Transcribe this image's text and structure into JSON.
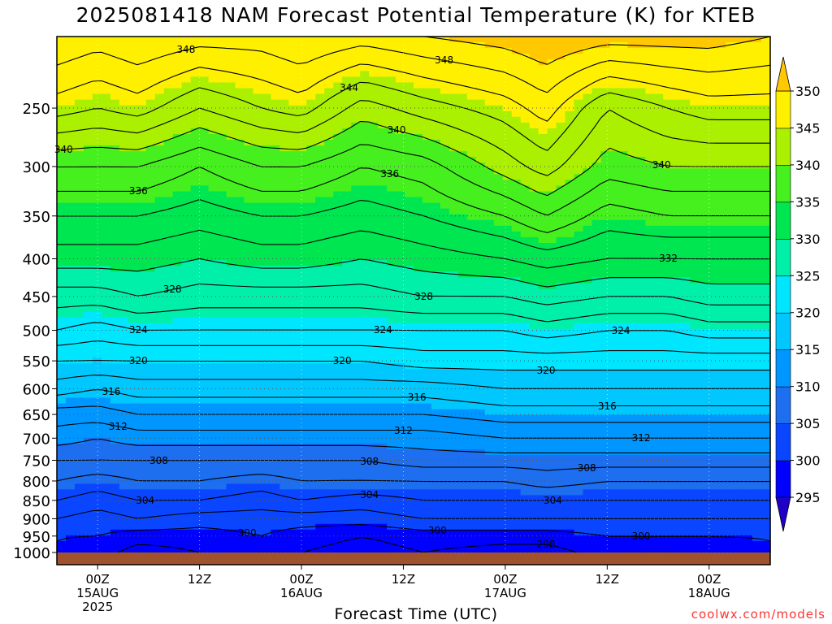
{
  "header": {
    "title": "2025081418 NAM Forecast Potential Temperature (K) for KTEB"
  },
  "footer": {
    "xlabel": "Forecast Time (UTC)",
    "credit": "coolwx.com/models"
  },
  "colors": {
    "ground": "#a0522d",
    "contour": "#000000",
    "grid": "#555555"
  },
  "chart_data": {
    "type": "filled-contour",
    "title": "2025081418 NAM Forecast Potential Temperature (K) for KTEB",
    "xlabel": "Forecast Time (UTC)",
    "ylabel": "",
    "x_range_hours": [
      -6,
      99
    ],
    "y_axis": "pressure (hPa), inverted",
    "y_range": [
      200,
      1000
    ],
    "x_ticks": [
      {
        "hour": 0,
        "lines": [
          "00Z",
          "15AUG",
          "2025"
        ]
      },
      {
        "hour": 15,
        "lines": [
          "12Z"
        ]
      },
      {
        "hour": 30,
        "lines": [
          "00Z",
          "16AUG"
        ]
      },
      {
        "hour": 45,
        "lines": [
          "12Z"
        ]
      },
      {
        "hour": 60,
        "lines": [
          "00Z",
          "17AUG"
        ]
      },
      {
        "hour": 75,
        "lines": [
          "12Z"
        ]
      },
      {
        "hour": 90,
        "lines": [
          "00Z",
          "18AUG"
        ]
      }
    ],
    "y_ticks": [
      250,
      300,
      350,
      400,
      450,
      500,
      550,
      600,
      650,
      700,
      750,
      800,
      850,
      900,
      950,
      1000
    ],
    "colorbar": {
      "labels": [
        295,
        300,
        305,
        310,
        315,
        320,
        325,
        330,
        335,
        340,
        345,
        350
      ],
      "bands": [
        {
          "min": 290,
          "max": 295,
          "color": "#1e00c8"
        },
        {
          "min": 295,
          "max": 300,
          "color": "#0000ff"
        },
        {
          "min": 300,
          "max": 305,
          "color": "#0a46ff"
        },
        {
          "min": 305,
          "max": 310,
          "color": "#1e6ef0"
        },
        {
          "min": 310,
          "max": 315,
          "color": "#0096ff"
        },
        {
          "min": 315,
          "max": 320,
          "color": "#00c8ff"
        },
        {
          "min": 320,
          "max": 325,
          "color": "#00e6ff"
        },
        {
          "min": 325,
          "max": 330,
          "color": "#00f0aa"
        },
        {
          "min": 330,
          "max": 335,
          "color": "#00e650"
        },
        {
          "min": 335,
          "max": 340,
          "color": "#46f01e"
        },
        {
          "min": 340,
          "max": 345,
          "color": "#aaf000"
        },
        {
          "min": 345,
          "max": 350,
          "color": "#fff000"
        },
        {
          "min": 350,
          "max": 355,
          "color": "#ffc800"
        }
      ]
    },
    "profile_pressures": [
      200,
      250,
      300,
      350,
      400,
      450,
      500,
      550,
      600,
      650,
      700,
      750,
      800,
      850,
      900,
      950,
      1000
    ],
    "profiles": [
      {
        "hour": -6,
        "theta": [
          350,
          345,
          338,
          334,
          331,
          327,
          324,
          320,
          317,
          313,
          311,
          308,
          306,
          304,
          302,
          300,
          300
        ]
      },
      {
        "hour": 0,
        "theta": [
          349,
          344,
          338,
          334,
          331,
          327,
          323,
          320,
          316,
          313,
          310,
          308,
          305,
          303,
          301,
          300,
          299
        ]
      },
      {
        "hour": 6,
        "theta": [
          350,
          345,
          338,
          334,
          331,
          328,
          324,
          320,
          317,
          314,
          311,
          308,
          306,
          304,
          302,
          299,
          297
        ]
      },
      {
        "hour": 15,
        "theta": [
          349,
          342,
          336,
          333,
          330,
          327,
          324,
          320,
          317,
          314,
          311,
          308,
          306,
          304,
          301,
          299,
          298
        ]
      },
      {
        "hour": 24,
        "theta": [
          349,
          344,
          338,
          334,
          331,
          327,
          324,
          320,
          317,
          314,
          311,
          308,
          305,
          303,
          301,
          300,
          300
        ]
      },
      {
        "hour": 30,
        "theta": [
          350,
          345,
          338,
          334,
          331,
          327,
          324,
          320,
          317,
          314,
          311,
          308,
          306,
          304,
          301,
          299,
          298
        ]
      },
      {
        "hour": 39,
        "theta": [
          349,
          341,
          336,
          333,
          330,
          327,
          324,
          320,
          317,
          314,
          311,
          308,
          306,
          303,
          301,
          298,
          297
        ]
      },
      {
        "hour": 48,
        "theta": [
          350,
          343,
          337,
          334,
          331,
          328,
          324,
          321,
          317,
          314,
          311,
          309,
          306,
          304,
          302,
          299,
          298
        ]
      },
      {
        "hour": 60,
        "theta": [
          351,
          345,
          341,
          336,
          332,
          328,
          324,
          321,
          318,
          315,
          312,
          309,
          306,
          304,
          302,
          299,
          297
        ]
      },
      {
        "hour": 66,
        "theta": [
          352,
          347,
          343,
          338,
          333,
          329,
          325,
          321,
          318,
          315,
          312,
          309,
          307,
          304,
          302,
          299,
          297
        ]
      },
      {
        "hour": 75,
        "theta": [
          351,
          342,
          339,
          335,
          332,
          328,
          324,
          321,
          318,
          315,
          312,
          309,
          306,
          304,
          302,
          300,
          299
        ]
      },
      {
        "hour": 84,
        "theta": [
          351,
          344,
          340,
          336,
          332,
          328,
          324,
          321,
          318,
          315,
          312,
          309,
          306,
          304,
          302,
          300,
          299
        ]
      },
      {
        "hour": 90,
        "theta": [
          351,
          345,
          340,
          336,
          332,
          329,
          325,
          321,
          318,
          315,
          312,
          309,
          306,
          304,
          302,
          300,
          299
        ]
      },
      {
        "hour": 99,
        "theta": [
          350,
          345,
          340,
          336,
          332,
          329,
          325,
          321,
          318,
          315,
          312,
          309,
          306,
          304,
          302,
          300,
          300
        ]
      }
    ],
    "contour_interval": 2,
    "contour_labels": [
      {
        "value": 348,
        "hour": 13
      },
      {
        "value": 348,
        "hour": 51
      },
      {
        "value": 344,
        "hour": 37
      },
      {
        "value": 340,
        "hour": 44
      },
      {
        "value": 340,
        "hour": 83
      },
      {
        "value": 340,
        "hour": -5
      },
      {
        "value": 336,
        "hour": 6
      },
      {
        "value": 336,
        "hour": 43
      },
      {
        "value": 332,
        "hour": 84
      },
      {
        "value": 328,
        "hour": 11
      },
      {
        "value": 328,
        "hour": 48
      },
      {
        "value": 324,
        "hour": 6
      },
      {
        "value": 324,
        "hour": 42
      },
      {
        "value": 324,
        "hour": 77
      },
      {
        "value": 320,
        "hour": 6
      },
      {
        "value": 320,
        "hour": 36
      },
      {
        "value": 320,
        "hour": 66
      },
      {
        "value": 316,
        "hour": 2
      },
      {
        "value": 316,
        "hour": 47
      },
      {
        "value": 316,
        "hour": 75
      },
      {
        "value": 312,
        "hour": 3
      },
      {
        "value": 312,
        "hour": 45
      },
      {
        "value": 312,
        "hour": 80
      },
      {
        "value": 308,
        "hour": 9
      },
      {
        "value": 308,
        "hour": 40
      },
      {
        "value": 308,
        "hour": 72
      },
      {
        "value": 304,
        "hour": 7
      },
      {
        "value": 304,
        "hour": 40
      },
      {
        "value": 304,
        "hour": 67
      },
      {
        "value": 300,
        "hour": 22
      },
      {
        "value": 300,
        "hour": 50
      },
      {
        "value": 300,
        "hour": 80
      },
      {
        "value": 298,
        "hour": 66
      }
    ]
  }
}
